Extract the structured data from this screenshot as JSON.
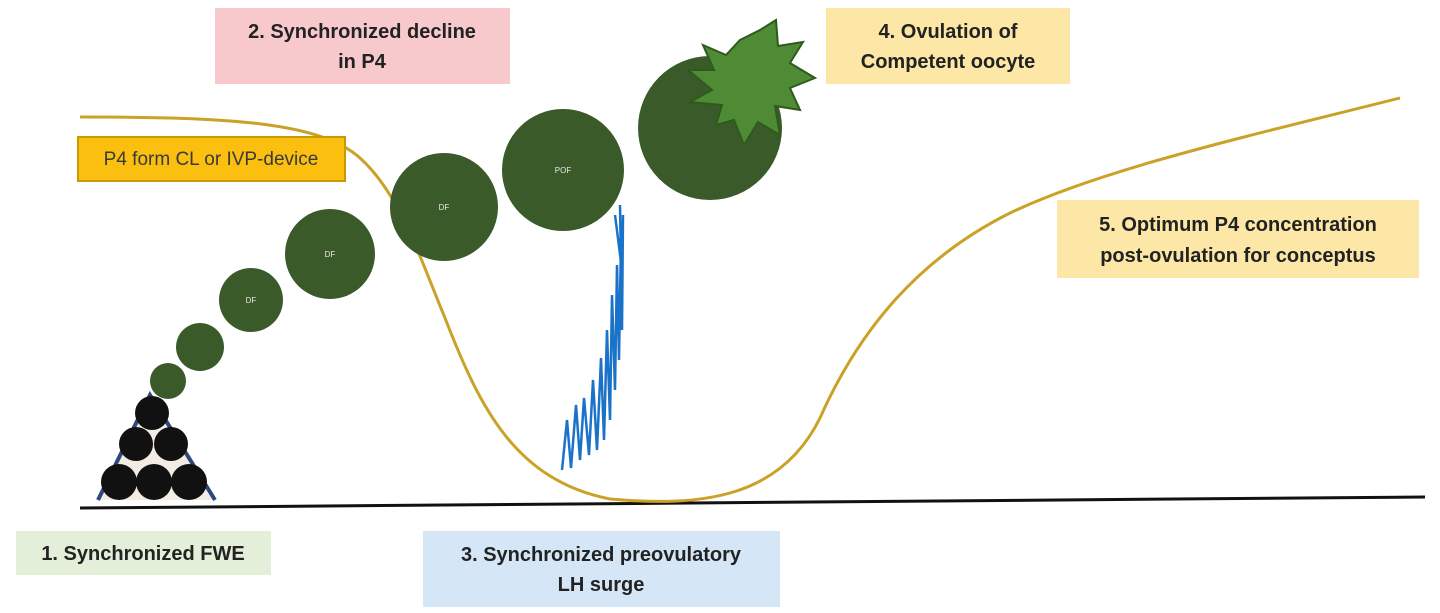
{
  "labels": {
    "step1": "1. Synchronized FWE",
    "step2_line1": "2. Synchronized decline",
    "step2_line2": "in P4",
    "step3_line1": "3. Synchronized preovulatory",
    "step3_line2": "LH surge",
    "step4_line1": "4. Ovulation of",
    "step4_line2": "Competent oocyte",
    "step5_line1": "5. Optimum P4 concentration",
    "step5_line2": "post-ovulation for conceptus",
    "p4_source": "P4 form CL or IVP-device"
  },
  "follicle_labels": {
    "f1": "DF",
    "f2": "DF",
    "f3": "DF",
    "f4": "POF"
  },
  "colors": {
    "follicle": "#3a5a2a",
    "oocyte_burst": "#4f8a34",
    "p4_curve": "#c9a227",
    "lh_pulse": "#1a73c8",
    "baseline": "#111111",
    "box_pink": "#f8c9cc",
    "box_blue": "#d5e6f6",
    "box_green": "#e3efd9",
    "box_yellow": "#fde7a6",
    "box_orange": "#fbbf0f"
  }
}
